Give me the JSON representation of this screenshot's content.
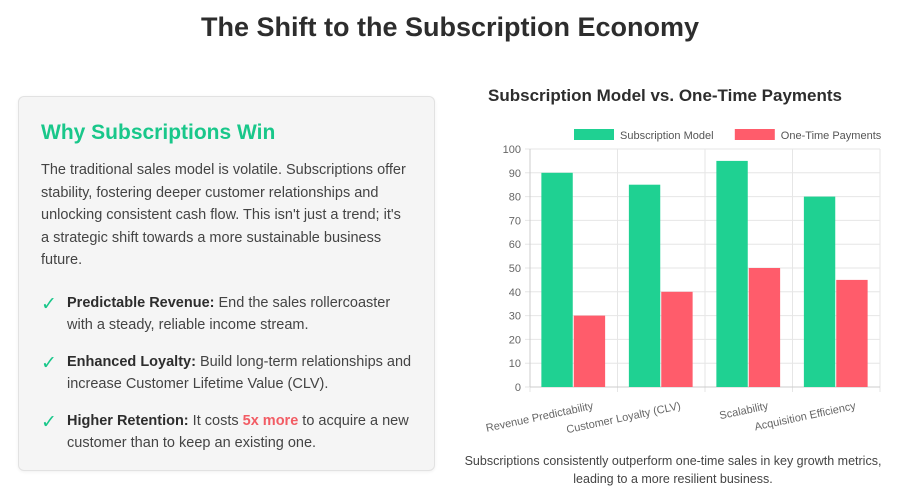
{
  "page": {
    "title": "The Shift to the Subscription Economy"
  },
  "card": {
    "title": "Why Subscriptions Win",
    "intro": "The traditional sales model is volatile. Subscriptions offer stability, fostering deeper customer relationships and unlocking consistent cash flow. This isn't just a trend; it's a strategic shift towards a more sustainable business future.",
    "check_icon": "✓",
    "benefits": [
      {
        "title": "Predictable Revenue:",
        "text": " End the sales rollercoaster with a steady, reliable income stream."
      },
      {
        "title": "Enhanced Loyalty:",
        "text": " Build long-term relationships and increase Customer Lifetime Value (CLV)."
      },
      {
        "title": "Higher Retention:",
        "text_before": " It costs ",
        "emphasis": "5x more",
        "text_after": " to acquire a new customer than to keep an existing one."
      }
    ]
  },
  "colors": {
    "accent": "#19c78a",
    "series_a": "#1fd192",
    "series_b": "#ff5c6b",
    "emphasis": "#f25c64"
  },
  "caption": "Subscriptions consistently outperform one-time sales in key growth metrics, leading to a more resilient business.",
  "chart_data": {
    "type": "bar",
    "title": "Subscription Model vs. One-Time Payments",
    "categories": [
      "Revenue Predictability",
      "Customer Loyalty (CLV)",
      "Scalability",
      "Acquisition Efficiency"
    ],
    "series": [
      {
        "name": "Subscription Model",
        "values": [
          90,
          85,
          95,
          80
        ],
        "color": "#1fd192"
      },
      {
        "name": "One-Time Payments",
        "values": [
          30,
          40,
          50,
          45
        ],
        "color": "#ff5c6b"
      }
    ],
    "ylim": [
      0,
      100
    ],
    "yticks": [
      0,
      10,
      20,
      30,
      40,
      50,
      60,
      70,
      80,
      90,
      100
    ],
    "grid": true,
    "legend": "top"
  }
}
